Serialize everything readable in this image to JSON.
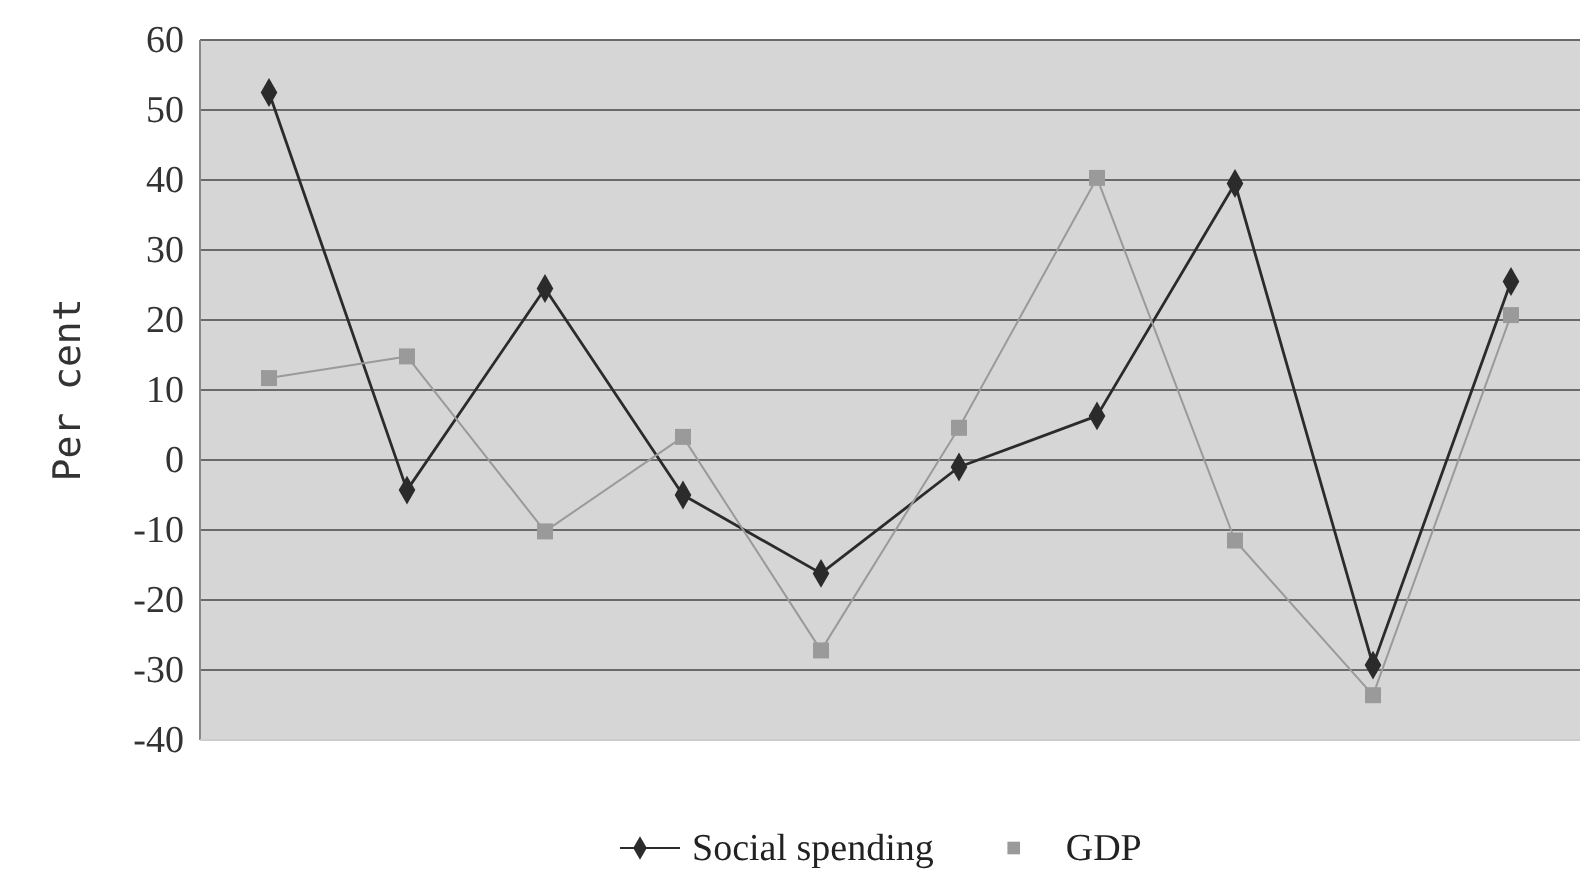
{
  "chart_data": {
    "type": "line",
    "ylabel": "Per cent",
    "categories": [
      null,
      null,
      null,
      null,
      null,
      null,
      null,
      null,
      null,
      null
    ],
    "series": [
      {
        "name": "Social spending",
        "color": "#2b2b2b",
        "marker": "diamond",
        "values": [
          52.5,
          -4.3,
          24.5,
          -5,
          -16.2,
          -1,
          6.3,
          39.5,
          -29.3,
          25.5
        ]
      },
      {
        "name": "GDP",
        "color": "#9a9a9a",
        "marker": "square",
        "values": [
          11.7,
          14.8,
          -10.2,
          3.3,
          -27.2,
          4.6,
          40.3,
          -11.5,
          -33.6,
          20.7
        ]
      }
    ],
    "ylim": [
      -40,
      60
    ],
    "yticks": [
      -40,
      -30,
      -20,
      -10,
      0,
      10,
      20,
      30,
      40,
      50,
      60
    ],
    "grid": "y",
    "legend": "bottom",
    "line_style": "solid"
  }
}
